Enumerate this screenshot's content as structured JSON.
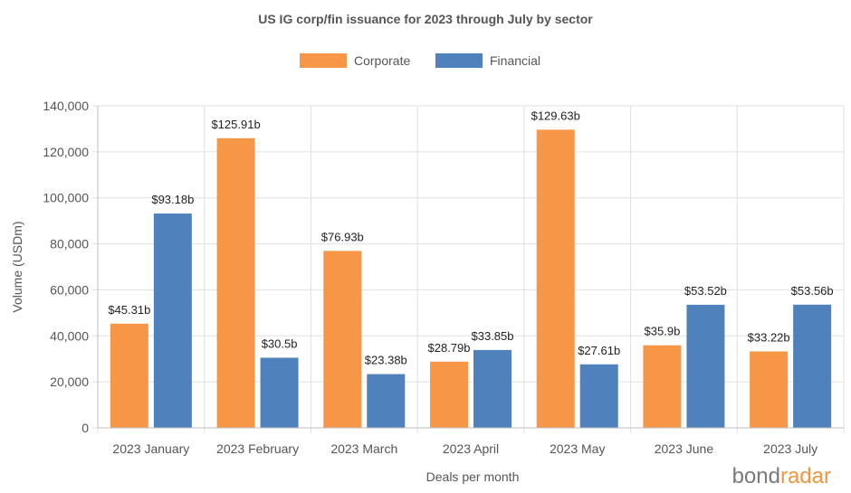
{
  "chart_data": {
    "type": "bar",
    "title": "US IG corp/fin issuance for 2023 through July by sector",
    "xlabel": "Deals per month",
    "ylabel": "Volume (USDm)",
    "ylim": [
      0,
      140000
    ],
    "yticks": [
      0,
      20000,
      40000,
      60000,
      80000,
      100000,
      120000,
      140000
    ],
    "ytick_labels": [
      "0",
      "20,000",
      "40,000",
      "60,000",
      "80,000",
      "100,000",
      "120,000",
      "140,000"
    ],
    "grid": true,
    "legend_position": "top-center",
    "categories": [
      "2023 January",
      "2023 February",
      "2023 March",
      "2023 April",
      "2023 May",
      "2023 June",
      "2023 July"
    ],
    "series": [
      {
        "name": "Corporate",
        "color": "#f79646",
        "values": [
          45310,
          125910,
          76930,
          28790,
          129630,
          35900,
          33220
        ],
        "labels": [
          "$45.31b",
          "$125.91b",
          "$76.93b",
          "$28.79b",
          "$129.63b",
          "$35.9b",
          "$33.22b"
        ]
      },
      {
        "name": "Financial",
        "color": "#4f81bd",
        "values": [
          93180,
          30500,
          23380,
          33850,
          27610,
          53520,
          53560
        ],
        "labels": [
          "$93.18b",
          "$30.5b",
          "$23.38b",
          "$33.85b",
          "$27.61b",
          "$53.52b",
          "$53.56b"
        ]
      }
    ]
  },
  "logo": {
    "part1": "bond",
    "part2": "radar"
  }
}
